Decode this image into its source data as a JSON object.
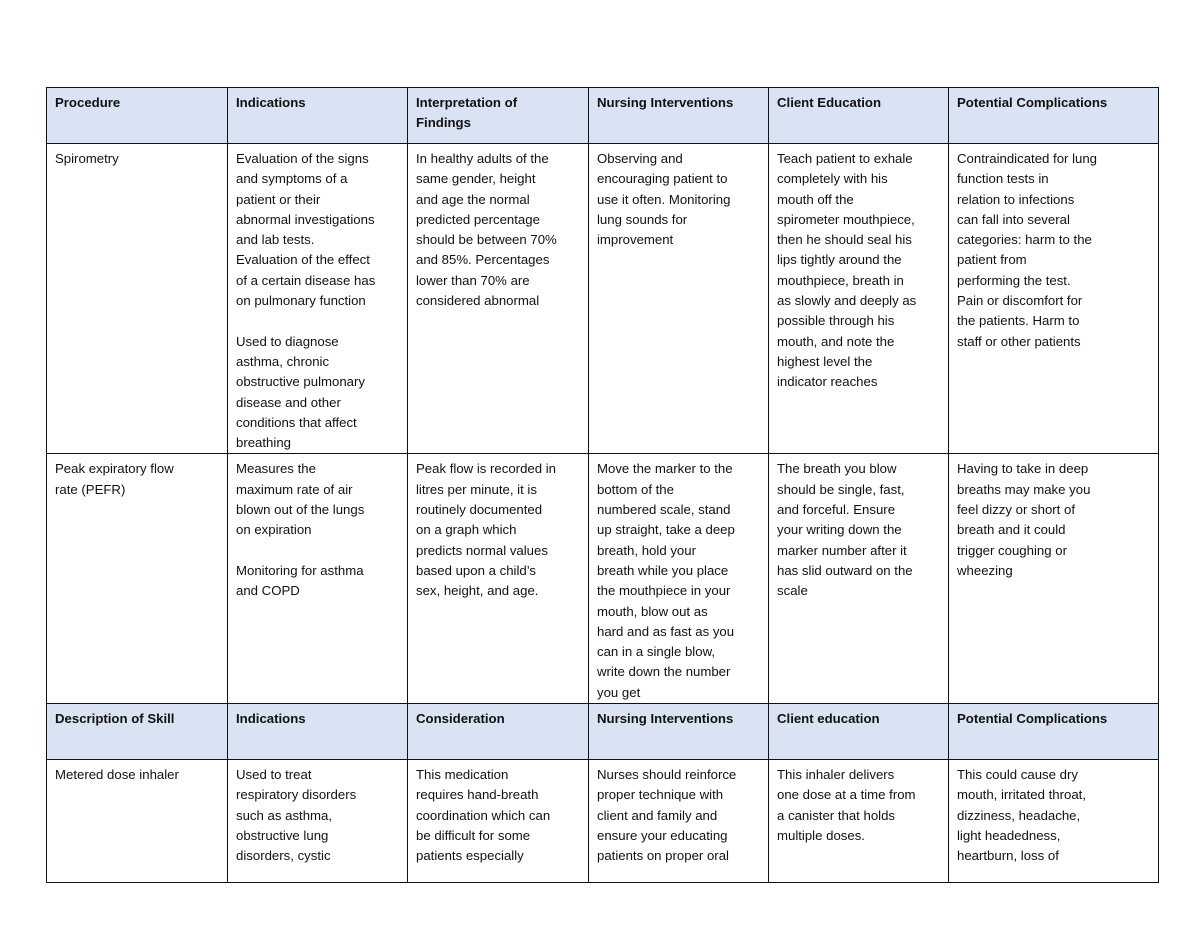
{
  "table1": {
    "headers": [
      "Procedure",
      "Indications",
      "Interpretation of\nFindings",
      "Nursing Interventions",
      "Client Education",
      "Potential Complications"
    ],
    "rows": [
      [
        "Spirometry",
        "Evaluation of the signs\nand symptoms of a\npatient or their\nabnormal investigations\nand lab tests.\nEvaluation of the effect\nof a certain disease has\non pulmonary function\n\nUsed to diagnose\nasthma, chronic\nobstructive pulmonary\ndisease and other\nconditions that affect\nbreathing",
        "In healthy adults of the\nsame gender, height\nand age the normal\npredicted percentage\nshould be between 70%\nand 85%. Percentages\nlower than 70% are\nconsidered abnormal",
        "Observing and\nencouraging patient to\nuse it often. Monitoring\nlung sounds for\nimprovement",
        "Teach patient to exhale\ncompletely with his\nmouth off the\nspirometer mouthpiece,\nthen he should seal his\nlips tightly around the\nmouthpiece, breath in\nas slowly and deeply as\npossible through his\nmouth, and note the\nhighest level the\nindicator reaches",
        "Contraindicated for lung\nfunction tests in\nrelation to infections\ncan fall into several\ncategories: harm to the\npatient from\nperforming the test.\nPain or discomfort for\nthe patients. Harm to\nstaff or other patients"
      ],
      [
        "Peak expiratory flow\nrate (PEFR)",
        "Measures the\nmaximum rate of air\nblown out of the lungs\non expiration\n\nMonitoring for asthma\nand COPD",
        "Peak flow is recorded in\nlitres per minute, it is\nroutinely documented\non a graph which\npredicts normal values\nbased upon a child’s\nsex, height, and age.",
        "Move the marker to the\nbottom of the\nnumbered scale, stand\nup straight, take a deep\nbreath, hold your\nbreath while you place\nthe mouthpiece in your\nmouth, blow out as\nhard and as fast as you\ncan in a single blow,\nwrite down the number\nyou get",
        "The breath you blow\nshould be single, fast,\nand forceful. Ensure\nyour writing down the\nmarker number after it\nhas slid outward on the\nscale",
        "Having to take in deep\nbreaths may make you\nfeel dizzy or short of\nbreath and it could\ntrigger coughing or\nwheezing"
      ]
    ]
  },
  "table2": {
    "headers": [
      "Description of Skill",
      "Indications",
      "Consideration",
      "Nursing Interventions",
      "Client education",
      "Potential Complications"
    ],
    "rows": [
      [
        "Metered dose inhaler",
        "Used to treat\nrespiratory disorders\nsuch as asthma,\nobstructive lung\ndisorders, cystic",
        "This medication\nrequires hand-breath\ncoordination which can\nbe difficult for some\npatients especially",
        "Nurses should reinforce\nproper technique with\nclient and family and\nensure your educating\npatients on proper oral",
        "This inhaler delivers\none dose at a time from\na canister that holds\nmultiple doses.",
        "This could cause dry\nmouth, irritated throat,\ndizziness, headache,\nlight headedness,\nheartburn, loss of"
      ]
    ]
  },
  "colors": {
    "header_bg": "#dae3f3",
    "border": "#111111"
  }
}
